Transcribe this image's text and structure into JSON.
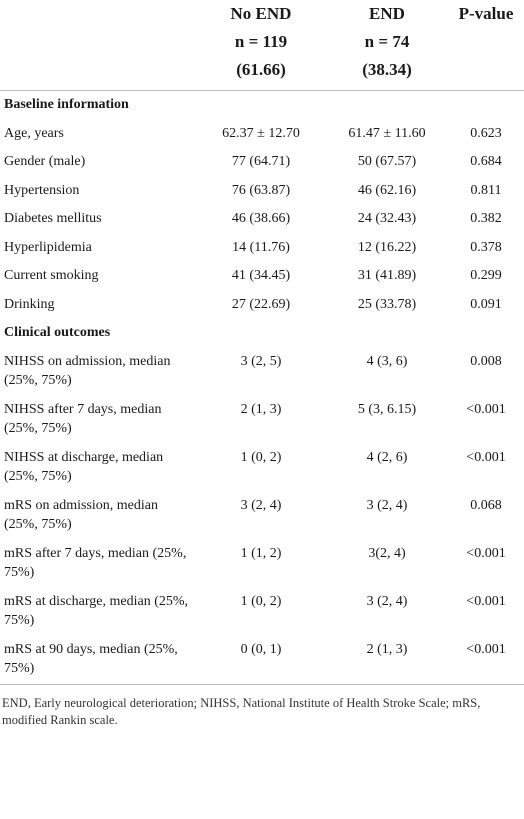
{
  "table": {
    "columns": [
      [],
      [
        "No END",
        "n = 119",
        "(61.66)"
      ],
      [
        "END",
        "n = 74",
        "(38.34)"
      ],
      [
        "P-value"
      ]
    ],
    "sections": [
      {
        "title": "Baseline information",
        "rows": [
          [
            "Age, years",
            "62.37 ± 12.70",
            "61.47 ± 11.60",
            "0.623"
          ],
          [
            "Gender (male)",
            "77 (64.71)",
            "50 (67.57)",
            "0.684"
          ],
          [
            "Hypertension",
            "76 (63.87)",
            "46 (62.16)",
            "0.811"
          ],
          [
            "Diabetes mellitus",
            "46 (38.66)",
            "24 (32.43)",
            "0.382"
          ],
          [
            "Hyperlipidemia",
            "14 (11.76)",
            "12 (16.22)",
            "0.378"
          ],
          [
            "Current smoking",
            "41 (34.45)",
            "31 (41.89)",
            "0.299"
          ],
          [
            "Drinking",
            "27 (22.69)",
            "25 (33.78)",
            "0.091"
          ]
        ]
      },
      {
        "title": "Clinical outcomes",
        "rows": [
          [
            "NIHSS on admission, median (25%, 75%)",
            "3 (2, 5)",
            "4 (3, 6)",
            "0.008"
          ],
          [
            "NIHSS after 7 days, median (25%, 75%)",
            "2 (1, 3)",
            "5 (3, 6.15)",
            "<0.001"
          ],
          [
            "NIHSS at discharge, median (25%, 75%)",
            "1 (0, 2)",
            "4 (2, 6)",
            "<0.001"
          ],
          [
            "mRS on admission, median (25%, 75%)",
            "3 (2, 4)",
            "3 (2, 4)",
            "0.068"
          ],
          [
            "mRS after 7 days, median (25%, 75%)",
            "1 (1, 2)",
            "3(2, 4)",
            "<0.001"
          ],
          [
            "mRS at discharge, median (25%, 75%)",
            "1 (0, 2)",
            "3 (2, 4)",
            "<0.001"
          ],
          [
            "mRS at 90 days, median (25%, 75%)",
            "0 (0, 1)",
            "2 (1, 3)",
            "<0.001"
          ]
        ]
      }
    ],
    "footnote": "END, Early neurological deterioration; NIHSS, National Institute of Health Stroke Scale; mRS, modified Rankin scale."
  }
}
